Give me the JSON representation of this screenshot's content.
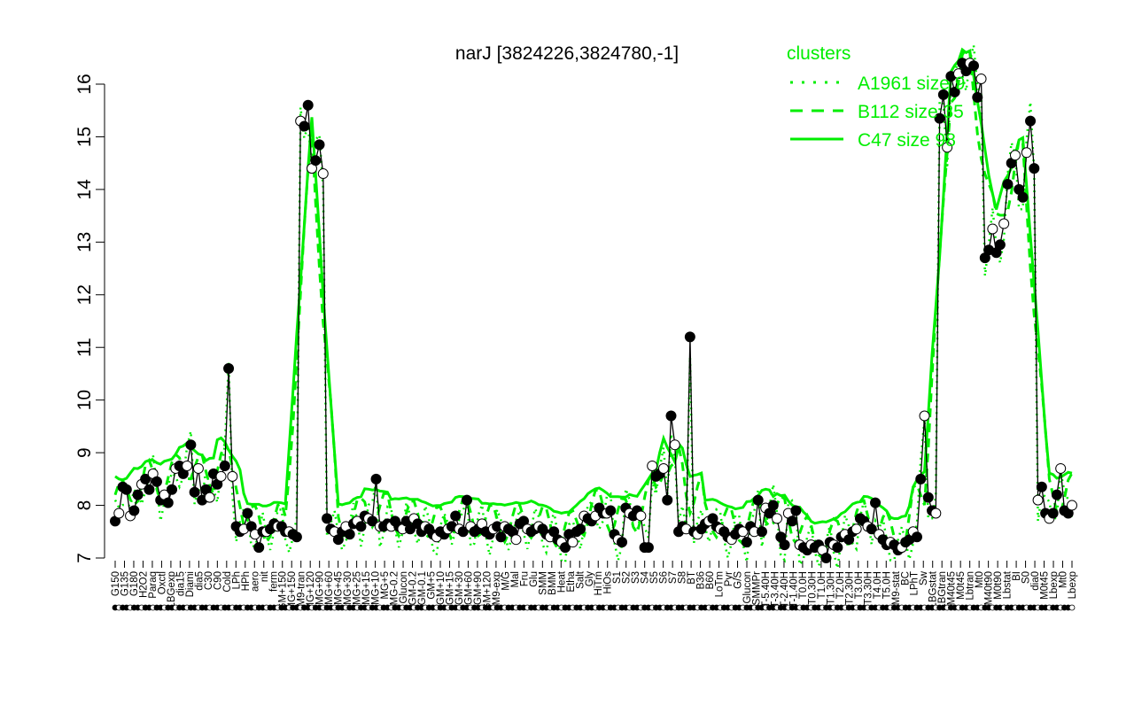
{
  "chart_data": {
    "type": "line",
    "title": "narJ [3824226,3824780,-1]",
    "xlabel": "",
    "ylabel": "",
    "ylim": [
      7,
      16
    ],
    "yticks": [
      7,
      8,
      9,
      10,
      11,
      12,
      13,
      14,
      15,
      16
    ],
    "grid": false,
    "legend": {
      "title": "clusters",
      "placement": "top-right",
      "entries": [
        {
          "label": "A1961 size 9",
          "style": "dotted"
        },
        {
          "label": "B112 size 35",
          "style": "dashed"
        },
        {
          "label": "C47 size 98",
          "style": "solid"
        }
      ]
    },
    "colors": {
      "series": "#00ee00",
      "line": "#000000",
      "point_dark": "#000000",
      "point_light": "#ffffff"
    },
    "x_tick_labels": [
      "G150",
      "G135",
      "G180",
      "H2O2",
      "Paraq",
      "Oxctl",
      "LBGexp",
      "dia15",
      "Diami",
      "dia5",
      "C30",
      "C90",
      "Cold",
      "LPh",
      "HPh",
      "aero",
      "nit",
      "ferm",
      "GM+150",
      "MG+150",
      "M9-tran",
      "MG+120",
      "MG+90",
      "MG+60",
      "MG+45",
      "MG+30",
      "MG+25",
      "MG+15",
      "MG+10",
      "MG+5",
      "MG-0.2",
      "Glucon",
      "GM-0.2",
      "GM-0.1",
      "GM+5",
      "GM+10",
      "GM+15",
      "GM+30",
      "GM+60",
      "GM+90",
      "GM+120",
      "M9-exp",
      "M/G",
      "Mal",
      "Fru",
      "Glu",
      "SMM",
      "BMM",
      "Heat",
      "Etha",
      "Salt",
      "Gly",
      "HiTm",
      "HiOs",
      "S1",
      "S2",
      "S3",
      "S4",
      "S5",
      "S6",
      "S7",
      "S8",
      "BT",
      "B36",
      "B60",
      "LoTm",
      "Pyr",
      "G/S",
      "Glucon",
      "SMMPr",
      "T-5.40H",
      "T-3.40H",
      "T-2.40H",
      "T-1.40H",
      "T0.0H",
      "T0.30H",
      "T1.0H",
      "T1.30H",
      "T2.0H",
      "T2.30H",
      "T3.0H",
      "T3.30H",
      "T4.0H",
      "T5.0H",
      "M9-stat",
      "BC",
      "LPhT",
      "Sw",
      "LBGstat",
      "LBGtran",
      "M40t45",
      "M0t45",
      "Lbtran",
      "Mt0",
      "M40t90",
      "M0t90",
      "Lbstat",
      "BI",
      "S0",
      "dia0",
      "M0t45",
      "Lbexp",
      "Mt0",
      "Lbexp"
    ],
    "series": [
      {
        "values": [
          7.7,
          7.85,
          8.35,
          8.3,
          7.8,
          7.9,
          8.2,
          8.4,
          8.5,
          8.3,
          8.6,
          8.45,
          8.1,
          8.2,
          8.05,
          8.3,
          8.7,
          8.75,
          8.6,
          8.75,
          9.15,
          8.25,
          8.7,
          8.1,
          8.3,
          8.15,
          8.6,
          8.4,
          8.55,
          8.75,
          10.6,
          8.55,
          7.6,
          7.5,
          7.55,
          7.85,
          7.6,
          7.45,
          7.2,
          7.5,
          7.5,
          7.55,
          7.65,
          7.6,
          7.6,
          7.5,
          7.5,
          7.45,
          7.4,
          15.3,
          15.2,
          15.6,
          14.4,
          14.55,
          14.85,
          14.3,
          7.75,
          7.55,
          7.5,
          7.35,
          7.5,
          7.6,
          7.45,
          7.65,
          7.7,
          7.6,
          7.8,
          7.75,
          7.7,
          8.5,
          7.6,
          7.6,
          7.65,
          7.6,
          7.7,
          7.6,
          7.55,
          7.7,
          7.55,
          7.75,
          7.65,
          7.5,
          7.6,
          7.55,
          7.45,
          7.4,
          7.5,
          7.45,
          7.55,
          7.6,
          7.8,
          7.55,
          7.5,
          8.1,
          7.6,
          7.5,
          7.55,
          7.65,
          7.5,
          7.45,
          7.55,
          7.6,
          7.4,
          7.6,
          7.55,
          7.5,
          7.35,
          7.65,
          7.7,
          7.55,
          7.5,
          7.55,
          7.6,
          7.55,
          7.45,
          7.4,
          7.5,
          7.35,
          7.3,
          7.2,
          7.45,
          7.3,
          7.5,
          7.55,
          7.8,
          7.75,
          7.7,
          7.8,
          7.95,
          7.85,
          7.85,
          7.9,
          7.45,
          7.35,
          7.3,
          7.95,
          7.85,
          7.8,
          7.9,
          7.8,
          7.2,
          7.2,
          8.75,
          8.55,
          8.6,
          8.7,
          8.1,
          9.7,
          9.15,
          7.5,
          7.6,
          7.55,
          11.2,
          7.5,
          7.45,
          7.55,
          7.65,
          7.7,
          7.75,
          7.6,
          7.55,
          7.5,
          7.4,
          7.35,
          7.45,
          7.55,
          7.5,
          7.3,
          7.6,
          7.5,
          8.1,
          7.5,
          7.95,
          7.85,
          8.0,
          7.75,
          7.4,
          7.25,
          7.85,
          7.7,
          7.9,
          7.25,
          7.2,
          7.15,
          7.25,
          7.2,
          7.25,
          7.15,
          7.0,
          7.3,
          7.25,
          7.2,
          7.4,
          7.45,
          7.35,
          7.5,
          7.55,
          7.75,
          7.7,
          7.6,
          7.55,
          8.05,
          7.45,
          7.35,
          7.25,
          7.3,
          7.25,
          7.15,
          7.2,
          7.3,
          7.35,
          7.5,
          7.4,
          8.5,
          9.7,
          8.15,
          7.9,
          7.85,
          15.35,
          15.8,
          14.8,
          16.15,
          15.85,
          16.2,
          16.4,
          16.25,
          16.4,
          16.35,
          15.75,
          16.1,
          12.7,
          12.85,
          13.25,
          12.8,
          12.95,
          13.35,
          14.1,
          14.5,
          14.65,
          14.0,
          13.85,
          14.7,
          15.3,
          14.4,
          8.1,
          8.35,
          7.85,
          7.75,
          7.85,
          8.2,
          8.7,
          7.9,
          7.85,
          8.0
        ]
      }
    ]
  },
  "axes": {
    "x_axis_label": "",
    "y_axis_label": ""
  }
}
